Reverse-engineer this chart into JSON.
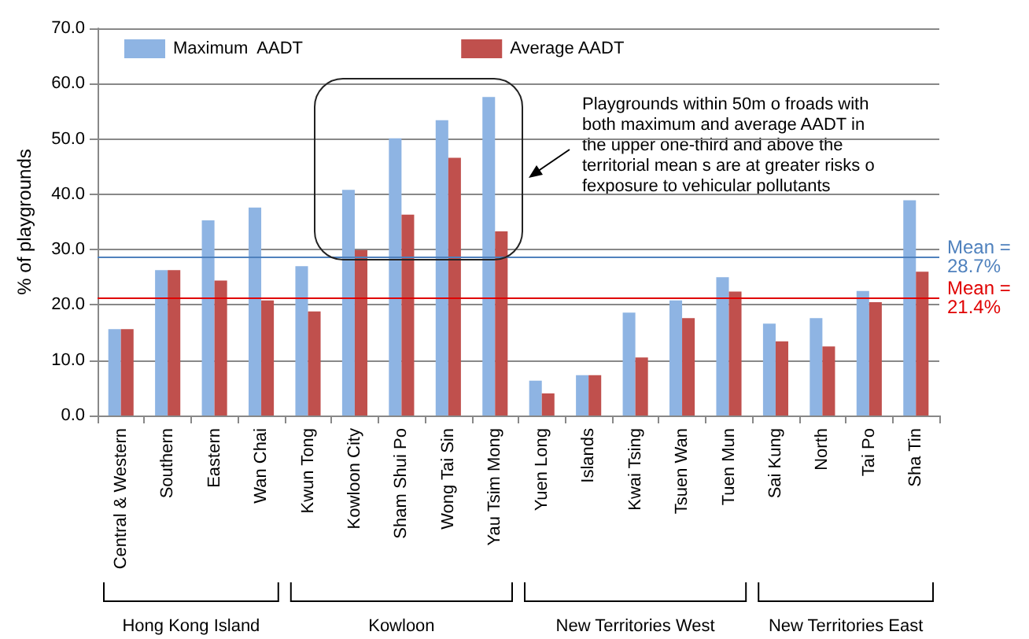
{
  "chart_data": {
    "type": "bar",
    "ylabel": "% of playgrounds",
    "categories": [
      "Central & Western",
      "Southern",
      "Eastern",
      "Wan Chai",
      "Kwun Tong",
      "Kowloon City",
      "Sham Shui Po",
      "Wong Tai Sin",
      "Yau Tsim Mong",
      "Yuen Long",
      "Islands",
      "Kwai Tsing",
      "Tsuen Wan",
      "Tuen Mun",
      "Sai Kung",
      "North",
      "Tai Po",
      "Sha Tin"
    ],
    "series": [
      {
        "name": "Maximum  AADT",
        "color": "#8eb4e3",
        "values": [
          15.6,
          26.3,
          35.3,
          37.6,
          27.0,
          40.8,
          50.1,
          53.4,
          57.6,
          6.3,
          7.3,
          18.6,
          20.8,
          25.0,
          16.6,
          17.6,
          22.5,
          38.9
        ]
      },
      {
        "name": "Average AADT",
        "color": "#c0504d",
        "values": [
          15.6,
          26.3,
          24.4,
          20.8,
          18.8,
          29.9,
          36.3,
          46.6,
          33.3,
          4.0,
          7.3,
          10.5,
          17.6,
          22.4,
          13.4,
          12.5,
          20.5,
          26.0
        ]
      }
    ],
    "ylim": [
      0,
      70
    ],
    "yticks": [
      {
        "value": 0,
        "label": "0.0"
      },
      {
        "value": 10,
        "label": "10.0"
      },
      {
        "value": 20,
        "label": "20.0"
      },
      {
        "value": 30,
        "label": "30.0"
      },
      {
        "value": 40,
        "label": "40.0"
      },
      {
        "value": 50,
        "label": "50.0"
      },
      {
        "value": 60,
        "label": "60.0"
      },
      {
        "value": 70,
        "label": "70.0"
      }
    ],
    "grid": "y",
    "legend": "top left",
    "ref_lines": [
      {
        "axis": "y",
        "value": 28.7,
        "label": "Mean = 28.7%",
        "color": "#4f81bd"
      },
      {
        "axis": "y",
        "value": 21.4,
        "label": "Mean = 21.4%",
        "color": "#e00000"
      }
    ],
    "annotations": [
      "Playgrounds within 50m o froads with both maximum and average AADT in the upper one-third and above the territorial mean s are at greater risks o fexposure to vehicular pollutants",
      "Hong Kong Island",
      "Kowloon",
      "New Territories West",
      "New Territories East"
    ]
  }
}
